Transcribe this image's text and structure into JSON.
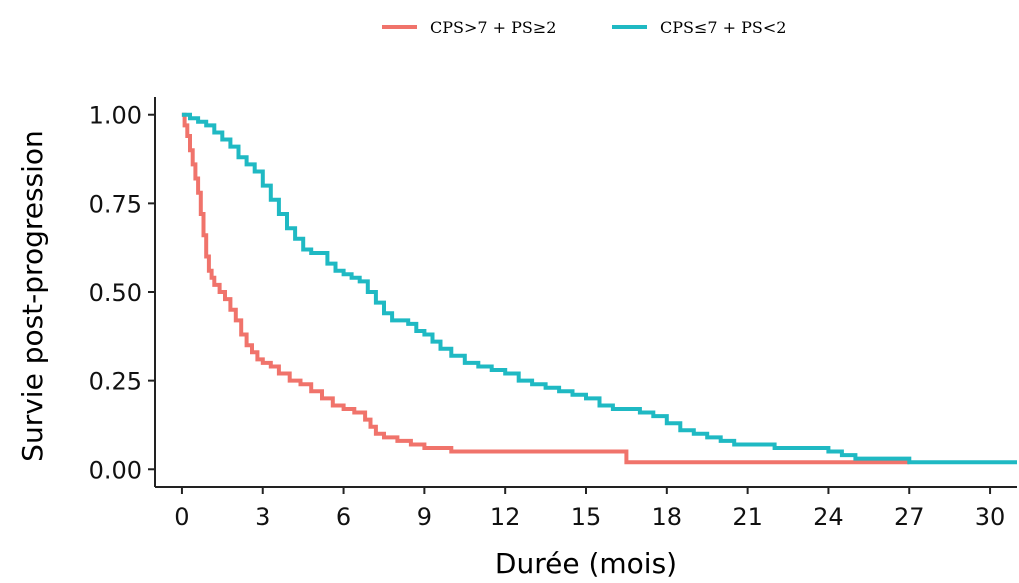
{
  "chart_data": {
    "type": "line",
    "step": true,
    "title": "",
    "xlabel": "Durée (mois)",
    "ylabel": "Survie post-progression",
    "xlim": [
      -1,
      31
    ],
    "ylim": [
      -0.05,
      1.05
    ],
    "xticks": [
      0,
      3,
      6,
      9,
      12,
      15,
      18,
      21,
      24,
      27,
      30
    ],
    "yticks": [
      0,
      0.25,
      0.5,
      0.75,
      1.0
    ],
    "xtick_labels": [
      "0",
      "3",
      "6",
      "9",
      "12",
      "15",
      "18",
      "21",
      "24",
      "27",
      "30"
    ],
    "ytick_labels": [
      "0.00",
      "0.25",
      "0.50",
      "0.75",
      "1.00"
    ],
    "grid": false,
    "legend_position": "top",
    "series": [
      {
        "name": "CPS>7 + PS≥2",
        "color": "#f0736b",
        "x": [
          0,
          0.1,
          0.2,
          0.3,
          0.4,
          0.5,
          0.6,
          0.7,
          0.8,
          0.9,
          1.0,
          1.1,
          1.2,
          1.4,
          1.6,
          1.8,
          2.0,
          2.2,
          2.4,
          2.6,
          2.8,
          3.0,
          3.3,
          3.6,
          4.0,
          4.4,
          4.8,
          5.2,
          5.6,
          6.0,
          6.4,
          6.8,
          7.0,
          7.2,
          7.5,
          8.0,
          8.5,
          9.0,
          9.5,
          10.0,
          12.0,
          14.0,
          16.4,
          16.5,
          20.0,
          24.0,
          27.0
        ],
        "y": [
          1.0,
          0.97,
          0.94,
          0.9,
          0.86,
          0.82,
          0.78,
          0.72,
          0.66,
          0.6,
          0.56,
          0.54,
          0.52,
          0.5,
          0.48,
          0.45,
          0.42,
          0.38,
          0.35,
          0.33,
          0.31,
          0.3,
          0.29,
          0.27,
          0.25,
          0.24,
          0.22,
          0.2,
          0.18,
          0.17,
          0.16,
          0.14,
          0.12,
          0.1,
          0.09,
          0.08,
          0.07,
          0.06,
          0.06,
          0.05,
          0.05,
          0.05,
          0.05,
          0.02,
          0.02,
          0.02,
          0.02
        ]
      },
      {
        "name": "CPS≤7 + PS<2",
        "color": "#1fb9c3",
        "x": [
          0,
          0.3,
          0.6,
          0.9,
          1.2,
          1.5,
          1.8,
          2.1,
          2.4,
          2.7,
          3.0,
          3.3,
          3.6,
          3.9,
          4.2,
          4.5,
          4.8,
          5.1,
          5.4,
          5.7,
          6.0,
          6.3,
          6.6,
          6.9,
          7.2,
          7.5,
          7.8,
          8.1,
          8.4,
          8.7,
          9.0,
          9.3,
          9.6,
          10.0,
          10.5,
          11.0,
          11.5,
          12.0,
          12.5,
          13.0,
          13.5,
          14.0,
          14.5,
          15.0,
          15.5,
          16.0,
          17.0,
          17.5,
          18.0,
          18.5,
          19.0,
          19.5,
          20.0,
          20.5,
          21.0,
          22.0,
          23.0,
          24.0,
          24.5,
          25.0,
          26.0,
          27.0,
          31.0
        ],
        "y": [
          1.0,
          0.99,
          0.98,
          0.97,
          0.95,
          0.93,
          0.91,
          0.88,
          0.86,
          0.84,
          0.8,
          0.76,
          0.72,
          0.68,
          0.65,
          0.62,
          0.61,
          0.61,
          0.58,
          0.56,
          0.55,
          0.54,
          0.53,
          0.5,
          0.47,
          0.44,
          0.42,
          0.42,
          0.41,
          0.39,
          0.38,
          0.36,
          0.34,
          0.32,
          0.3,
          0.29,
          0.28,
          0.27,
          0.25,
          0.24,
          0.23,
          0.22,
          0.21,
          0.2,
          0.18,
          0.17,
          0.16,
          0.15,
          0.13,
          0.11,
          0.1,
          0.09,
          0.08,
          0.07,
          0.07,
          0.06,
          0.06,
          0.05,
          0.04,
          0.03,
          0.03,
          0.02,
          0.02
        ]
      }
    ]
  }
}
